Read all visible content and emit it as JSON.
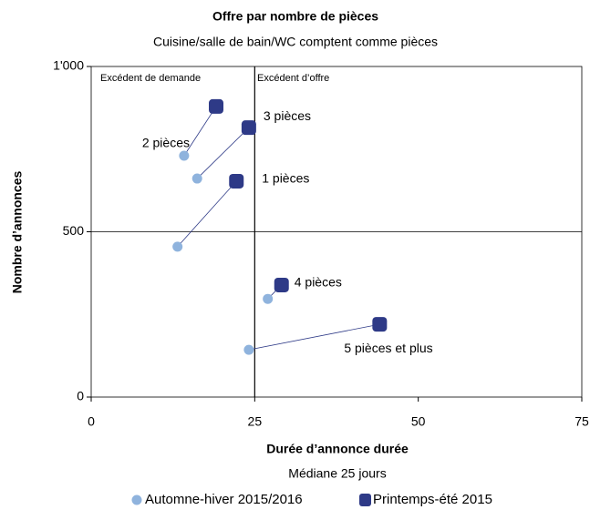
{
  "chart_data": {
    "type": "scatter",
    "title": "Offre par nombre de pièces",
    "subtitle": "Cuisine/salle de bain/WC comptent comme pièces",
    "x_label": "Durée d’annonce  durée",
    "x_sublabel": "Médiane 25 jours",
    "y_label": "Nombre d’annonces",
    "xlim": [
      0,
      75
    ],
    "xticks": [
      0,
      25,
      50,
      75
    ],
    "ylim": [
      0,
      1000
    ],
    "yticks": [
      0,
      500,
      {
        "value": 1000,
        "label": "1'000"
      }
    ],
    "vline": 25,
    "hline": 500,
    "quadrant_labels": [
      "Excédent de demande",
      "Excédent d’offre"
    ],
    "point_labels": [
      "1 pièces",
      "2 pièces",
      "3 pièces",
      "4 pièces",
      "5 pièces et plus"
    ],
    "series": [
      {
        "name": "Automne-hiver 2015/2016",
        "color": "#8fb3dd",
        "marker": "circle",
        "x": [
          13.2,
          14.2,
          16.2,
          27,
          24.1
        ],
        "values": [
          455,
          730,
          661,
          297,
          143
        ]
      },
      {
        "name": "Printemps-été 2015",
        "color": "#2e3a87",
        "marker": "square",
        "x": [
          22.2,
          19.1,
          24.1,
          29.1,
          44.1
        ],
        "values": [
          653,
          879,
          815,
          339,
          220
        ]
      }
    ]
  }
}
